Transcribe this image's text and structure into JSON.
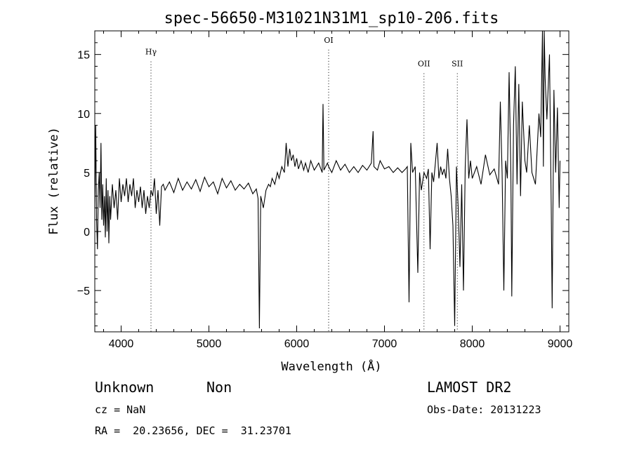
{
  "chart_data": {
    "type": "line",
    "title": "spec-56650-M31021N31M1_sp10-206.fits",
    "xlabel": "Wavelength (Å)",
    "ylabel": "Flux (relative)",
    "xlim": [
      3700,
      9100
    ],
    "ylim": [
      -8.5,
      17
    ],
    "x_ticks": [
      4000,
      5000,
      6000,
      7000,
      8000,
      9000
    ],
    "y_ticks": [
      -5,
      0,
      5,
      10,
      15
    ],
    "x_tick_labels": [
      "4000",
      "5000",
      "6000",
      "7000",
      "8000",
      "9000"
    ],
    "y_tick_labels": [
      "−5",
      "0",
      "5",
      "10",
      "15"
    ],
    "line_color": "#000000",
    "line_markers": [
      {
        "label": "Hγ",
        "x": 4340,
        "label_y": 15
      },
      {
        "label": "OI",
        "x": 6364,
        "label_y": 16
      },
      {
        "label": "OII",
        "x": 7450,
        "label_y": 14
      },
      {
        "label": "SII",
        "x": 7830,
        "label_y": 14
      }
    ],
    "series": [
      {
        "points": [
          [
            3700,
            2.0
          ],
          [
            3710,
            9.0
          ],
          [
            3720,
            1.0
          ],
          [
            3730,
            -1.5
          ],
          [
            3740,
            3.5
          ],
          [
            3750,
            5.0
          ],
          [
            3760,
            2.0
          ],
          [
            3770,
            7.5
          ],
          [
            3780,
            1.0
          ],
          [
            3790,
            4.0
          ],
          [
            3800,
            0.5
          ],
          [
            3810,
            3.0
          ],
          [
            3820,
            -0.5
          ],
          [
            3830,
            4.5
          ],
          [
            3840,
            0.0
          ],
          [
            3850,
            3.5
          ],
          [
            3860,
            -1.0
          ],
          [
            3870,
            3.0
          ],
          [
            3880,
            1.0
          ],
          [
            3900,
            4.0
          ],
          [
            3920,
            2.0
          ],
          [
            3940,
            3.5
          ],
          [
            3960,
            1.0
          ],
          [
            3980,
            4.5
          ],
          [
            4000,
            2.5
          ],
          [
            4020,
            4.0
          ],
          [
            4040,
            3.0
          ],
          [
            4060,
            4.5
          ],
          [
            4080,
            2.5
          ],
          [
            4100,
            4.0
          ],
          [
            4120,
            3.0
          ],
          [
            4140,
            4.5
          ],
          [
            4160,
            2.0
          ],
          [
            4180,
            3.5
          ],
          [
            4200,
            2.5
          ],
          [
            4220,
            3.8
          ],
          [
            4240,
            2.0
          ],
          [
            4260,
            3.5
          ],
          [
            4280,
            1.5
          ],
          [
            4300,
            3.0
          ],
          [
            4320,
            2.0
          ],
          [
            4340,
            3.5
          ],
          [
            4360,
            3.0
          ],
          [
            4380,
            4.5
          ],
          [
            4400,
            1.5
          ],
          [
            4420,
            3.5
          ],
          [
            4440,
            0.5
          ],
          [
            4460,
            3.8
          ],
          [
            4480,
            4.0
          ],
          [
            4500,
            3.5
          ],
          [
            4550,
            4.2
          ],
          [
            4600,
            3.3
          ],
          [
            4650,
            4.5
          ],
          [
            4700,
            3.5
          ],
          [
            4750,
            4.2
          ],
          [
            4800,
            3.6
          ],
          [
            4850,
            4.4
          ],
          [
            4900,
            3.4
          ],
          [
            4950,
            4.6
          ],
          [
            5000,
            3.8
          ],
          [
            5050,
            4.2
          ],
          [
            5100,
            3.2
          ],
          [
            5150,
            4.5
          ],
          [
            5200,
            3.7
          ],
          [
            5250,
            4.3
          ],
          [
            5300,
            3.5
          ],
          [
            5350,
            4.0
          ],
          [
            5400,
            3.6
          ],
          [
            5450,
            4.1
          ],
          [
            5500,
            3.2
          ],
          [
            5540,
            3.6
          ],
          [
            5560,
            2.8
          ],
          [
            5575,
            -8.2
          ],
          [
            5590,
            3.0
          ],
          [
            5620,
            2.0
          ],
          [
            5650,
            3.5
          ],
          [
            5680,
            4.0
          ],
          [
            5700,
            3.8
          ],
          [
            5720,
            4.5
          ],
          [
            5750,
            4.0
          ],
          [
            5780,
            5.0
          ],
          [
            5800,
            4.5
          ],
          [
            5830,
            5.5
          ],
          [
            5860,
            5.0
          ],
          [
            5880,
            7.5
          ],
          [
            5900,
            5.5
          ],
          [
            5920,
            7.0
          ],
          [
            5940,
            6.0
          ],
          [
            5960,
            6.5
          ],
          [
            5980,
            5.5
          ],
          [
            6000,
            6.2
          ],
          [
            6020,
            5.3
          ],
          [
            6050,
            6.0
          ],
          [
            6080,
            5.2
          ],
          [
            6100,
            5.8
          ],
          [
            6130,
            5.0
          ],
          [
            6160,
            6.0
          ],
          [
            6200,
            5.2
          ],
          [
            6250,
            5.8
          ],
          [
            6290,
            5.0
          ],
          [
            6300,
            10.8
          ],
          [
            6310,
            5.2
          ],
          [
            6350,
            5.8
          ],
          [
            6364,
            5.5
          ],
          [
            6400,
            5.0
          ],
          [
            6450,
            6.0
          ],
          [
            6500,
            5.2
          ],
          [
            6550,
            5.7
          ],
          [
            6600,
            5.0
          ],
          [
            6650,
            5.5
          ],
          [
            6700,
            5.0
          ],
          [
            6750,
            5.6
          ],
          [
            6800,
            5.2
          ],
          [
            6850,
            5.8
          ],
          [
            6870,
            8.5
          ],
          [
            6880,
            5.5
          ],
          [
            6920,
            5.2
          ],
          [
            6950,
            6.0
          ],
          [
            7000,
            5.3
          ],
          [
            7050,
            5.5
          ],
          [
            7100,
            5.0
          ],
          [
            7150,
            5.4
          ],
          [
            7200,
            5.0
          ],
          [
            7240,
            5.3
          ],
          [
            7260,
            5.5
          ],
          [
            7280,
            -6.0
          ],
          [
            7300,
            7.5
          ],
          [
            7320,
            5.0
          ],
          [
            7350,
            5.5
          ],
          [
            7380,
            -3.5
          ],
          [
            7400,
            5.0
          ],
          [
            7420,
            3.5
          ],
          [
            7450,
            5.0
          ],
          [
            7480,
            4.5
          ],
          [
            7500,
            5.3
          ],
          [
            7520,
            -1.5
          ],
          [
            7540,
            5.0
          ],
          [
            7560,
            4.2
          ],
          [
            7580,
            5.8
          ],
          [
            7600,
            7.5
          ],
          [
            7620,
            4.5
          ],
          [
            7640,
            5.5
          ],
          [
            7660,
            4.8
          ],
          [
            7680,
            5.3
          ],
          [
            7700,
            4.5
          ],
          [
            7720,
            7.0
          ],
          [
            7740,
            4.5
          ],
          [
            7760,
            3.0
          ],
          [
            7780,
            0.5
          ],
          [
            7800,
            -8.0
          ],
          [
            7820,
            5.5
          ],
          [
            7840,
            2.0
          ],
          [
            7860,
            -3.0
          ],
          [
            7880,
            4.0
          ],
          [
            7900,
            -5.0
          ],
          [
            7920,
            5.5
          ],
          [
            7940,
            9.5
          ],
          [
            7960,
            4.5
          ],
          [
            7980,
            6.0
          ],
          [
            8000,
            4.5
          ],
          [
            8050,
            5.5
          ],
          [
            8100,
            4.0
          ],
          [
            8150,
            6.5
          ],
          [
            8200,
            4.8
          ],
          [
            8250,
            5.3
          ],
          [
            8300,
            4.0
          ],
          [
            8320,
            11.0
          ],
          [
            8340,
            5.0
          ],
          [
            8360,
            -5.0
          ],
          [
            8380,
            6.0
          ],
          [
            8400,
            4.5
          ],
          [
            8420,
            13.5
          ],
          [
            8440,
            5.0
          ],
          [
            8450,
            -5.5
          ],
          [
            8470,
            9.0
          ],
          [
            8490,
            14.0
          ],
          [
            8510,
            4.0
          ],
          [
            8530,
            12.5
          ],
          [
            8550,
            3.0
          ],
          [
            8570,
            11.0
          ],
          [
            8600,
            6.0
          ],
          [
            8620,
            5.0
          ],
          [
            8650,
            9.0
          ],
          [
            8680,
            5.0
          ],
          [
            8700,
            4.5
          ],
          [
            8720,
            4.0
          ],
          [
            8740,
            7.0
          ],
          [
            8760,
            10.0
          ],
          [
            8780,
            8.0
          ],
          [
            8800,
            17.0
          ],
          [
            8810,
            5.5
          ],
          [
            8820,
            17.0
          ],
          [
            8830,
            13.0
          ],
          [
            8850,
            9.5
          ],
          [
            8880,
            15.0
          ],
          [
            8900,
            2.0
          ],
          [
            8910,
            -6.5
          ],
          [
            8930,
            12.0
          ],
          [
            8950,
            5.0
          ],
          [
            8970,
            10.5
          ],
          [
            8990,
            2.0
          ],
          [
            9000,
            6.0
          ]
        ]
      }
    ]
  },
  "info": {
    "class": "Unknown",
    "subclass": "Non",
    "survey": "LAMOST DR2",
    "cz": "cz = NaN",
    "obs_date": "Obs-Date: 20131223",
    "coords": "RA =  20.23656, DEC =  31.23701"
  }
}
